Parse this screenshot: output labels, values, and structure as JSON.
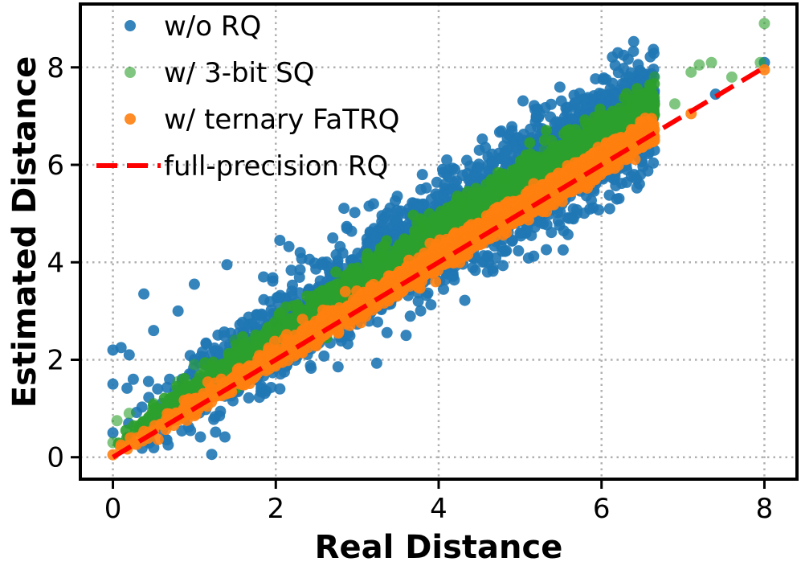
{
  "chart_data": {
    "type": "scatter",
    "title": "",
    "xlabel": "Real Distance",
    "ylabel": "Estimated Distance",
    "xlim": [
      -0.4,
      8.4
    ],
    "ylim": [
      -0.45,
      9.3
    ],
    "xticks": [
      0,
      2,
      4,
      6,
      8
    ],
    "yticks": [
      0,
      2,
      4,
      6,
      8
    ],
    "grid": true,
    "legend_position": "top-left",
    "series": [
      {
        "name": "w/o RQ",
        "color": "#1f77b4",
        "kind": "scatter",
        "points": [
          [
            0.0,
            0.5
          ],
          [
            0.0,
            1.5
          ],
          [
            0.0,
            2.2
          ],
          [
            0.1,
            2.25
          ],
          [
            0.2,
            2.1
          ],
          [
            0.25,
            1.6
          ],
          [
            0.38,
            3.35
          ],
          [
            0.5,
            2.6
          ],
          [
            0.55,
            1.4
          ],
          [
            0.8,
            3.0
          ],
          [
            1.0,
            3.55
          ],
          [
            1.0,
            2.0
          ],
          [
            1.4,
            3.95
          ],
          [
            1.5,
            2.4
          ],
          [
            1.85,
            3.7
          ],
          [
            2.05,
            4.45
          ],
          [
            2.3,
            4.2
          ],
          [
            2.5,
            3.3
          ],
          [
            2.7,
            4.5
          ],
          [
            3.0,
            3.75
          ],
          [
            3.2,
            5.2
          ],
          [
            3.4,
            4.4
          ],
          [
            3.6,
            5.0
          ],
          [
            3.6,
            2.5
          ],
          [
            3.8,
            5.8
          ],
          [
            3.9,
            4.2
          ],
          [
            4.1,
            6.1
          ],
          [
            4.3,
            4.5
          ],
          [
            4.5,
            6.3
          ],
          [
            4.6,
            3.8
          ],
          [
            4.7,
            5.7
          ],
          [
            4.9,
            6.7
          ],
          [
            5.0,
            4.6
          ],
          [
            5.1,
            6.2
          ],
          [
            5.2,
            7.0
          ],
          [
            5.3,
            5.0
          ],
          [
            5.5,
            6.5
          ],
          [
            5.6,
            4.9
          ],
          [
            5.8,
            7.35
          ],
          [
            5.9,
            5.5
          ],
          [
            6.0,
            6.9
          ],
          [
            6.1,
            5.1
          ],
          [
            6.2,
            8.3
          ],
          [
            6.3,
            7.2
          ],
          [
            6.4,
            5.8
          ],
          [
            6.5,
            7.8
          ],
          [
            6.65,
            6.3
          ],
          [
            7.4,
            7.45
          ],
          [
            8.0,
            8.1
          ]
        ]
      },
      {
        "name": "w/ 3-bit SQ",
        "color": "#2ca02c",
        "kind": "scatter",
        "points": [
          [
            0.0,
            0.3
          ],
          [
            0.05,
            0.75
          ],
          [
            0.2,
            0.9
          ],
          [
            0.5,
            1.1
          ],
          [
            0.8,
            1.55
          ],
          [
            1.0,
            1.9
          ],
          [
            1.3,
            1.6
          ],
          [
            1.5,
            2.4
          ],
          [
            1.8,
            2.2
          ],
          [
            2.0,
            2.8
          ],
          [
            2.3,
            2.6
          ],
          [
            2.5,
            3.2
          ],
          [
            2.8,
            3.6
          ],
          [
            3.0,
            3.3
          ],
          [
            3.3,
            4.1
          ],
          [
            3.5,
            3.9
          ],
          [
            3.8,
            4.7
          ],
          [
            4.0,
            4.4
          ],
          [
            4.3,
            5.2
          ],
          [
            4.5,
            4.9
          ],
          [
            4.8,
            5.7
          ],
          [
            5.0,
            5.4
          ],
          [
            5.3,
            6.3
          ],
          [
            5.5,
            5.9
          ],
          [
            5.8,
            6.8
          ],
          [
            6.0,
            6.4
          ],
          [
            6.3,
            7.2
          ],
          [
            6.5,
            6.6
          ],
          [
            6.65,
            7.8
          ],
          [
            6.9,
            7.25
          ],
          [
            7.1,
            7.9
          ],
          [
            7.2,
            8.05
          ],
          [
            7.35,
            8.1
          ],
          [
            7.6,
            7.8
          ],
          [
            7.95,
            8.1
          ],
          [
            8.0,
            8.9
          ]
        ]
      },
      {
        "name": "w/ ternary FaTRQ",
        "color": "#ff7f0e",
        "kind": "scatter",
        "points": [
          [
            0.0,
            0.05
          ],
          [
            0.1,
            0.25
          ],
          [
            0.3,
            0.4
          ],
          [
            0.5,
            0.55
          ],
          [
            0.8,
            0.9
          ],
          [
            1.0,
            1.2
          ],
          [
            1.3,
            1.35
          ],
          [
            1.5,
            1.6
          ],
          [
            1.8,
            1.95
          ],
          [
            2.0,
            2.2
          ],
          [
            2.3,
            2.45
          ],
          [
            2.5,
            2.6
          ],
          [
            2.8,
            2.95
          ],
          [
            3.0,
            3.2
          ],
          [
            3.3,
            3.45
          ],
          [
            3.5,
            3.6
          ],
          [
            3.8,
            3.95
          ],
          [
            4.0,
            4.2
          ],
          [
            4.3,
            4.45
          ],
          [
            4.5,
            4.6
          ],
          [
            4.8,
            4.95
          ],
          [
            5.0,
            5.2
          ],
          [
            5.3,
            5.45
          ],
          [
            5.5,
            5.6
          ],
          [
            5.8,
            5.95
          ],
          [
            6.0,
            6.2
          ],
          [
            6.3,
            6.4
          ],
          [
            6.5,
            6.7
          ],
          [
            6.65,
            6.5
          ],
          [
            7.1,
            7.05
          ],
          [
            8.0,
            7.95
          ]
        ]
      },
      {
        "name": "full-precision RQ",
        "color": "#ff0000",
        "kind": "dashed-line",
        "x": [
          0,
          8
        ],
        "y": [
          0,
          8
        ]
      }
    ]
  }
}
